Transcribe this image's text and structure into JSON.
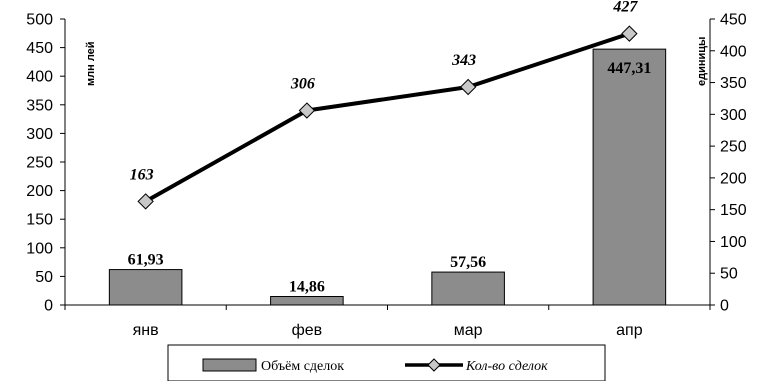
{
  "chart_data": {
    "type": "bar",
    "categories": [
      "янв",
      "фев",
      "мар",
      "апр"
    ],
    "series": [
      {
        "name": "Объём сделок",
        "kind": "bar",
        "axis": "left",
        "values": [
          61.93,
          14.86,
          57.56,
          447.31
        ],
        "labels": [
          "61,93",
          "14,86",
          "57,56",
          "447,31"
        ],
        "color": "#8c8c8c"
      },
      {
        "name": "Кол-во сделок",
        "kind": "line",
        "axis": "right",
        "values": [
          163,
          306,
          343,
          427
        ],
        "labels": [
          "163",
          "306",
          "343",
          "427"
        ],
        "color": "#000000",
        "marker_color": "#c8c8c8"
      }
    ],
    "ylabel_left": "млн лей",
    "ylabel_right": "единицы",
    "ylim_left": [
      0,
      500
    ],
    "ylim_right": [
      0,
      450
    ],
    "yticks_left": [
      "0",
      "50",
      "100",
      "150",
      "200",
      "250",
      "300",
      "350",
      "400",
      "450",
      "500"
    ],
    "yticks_right": [
      "0",
      "50",
      "100",
      "150",
      "200",
      "250",
      "300",
      "350",
      "400",
      "450"
    ],
    "grid": false,
    "legend_position": "bottom"
  }
}
